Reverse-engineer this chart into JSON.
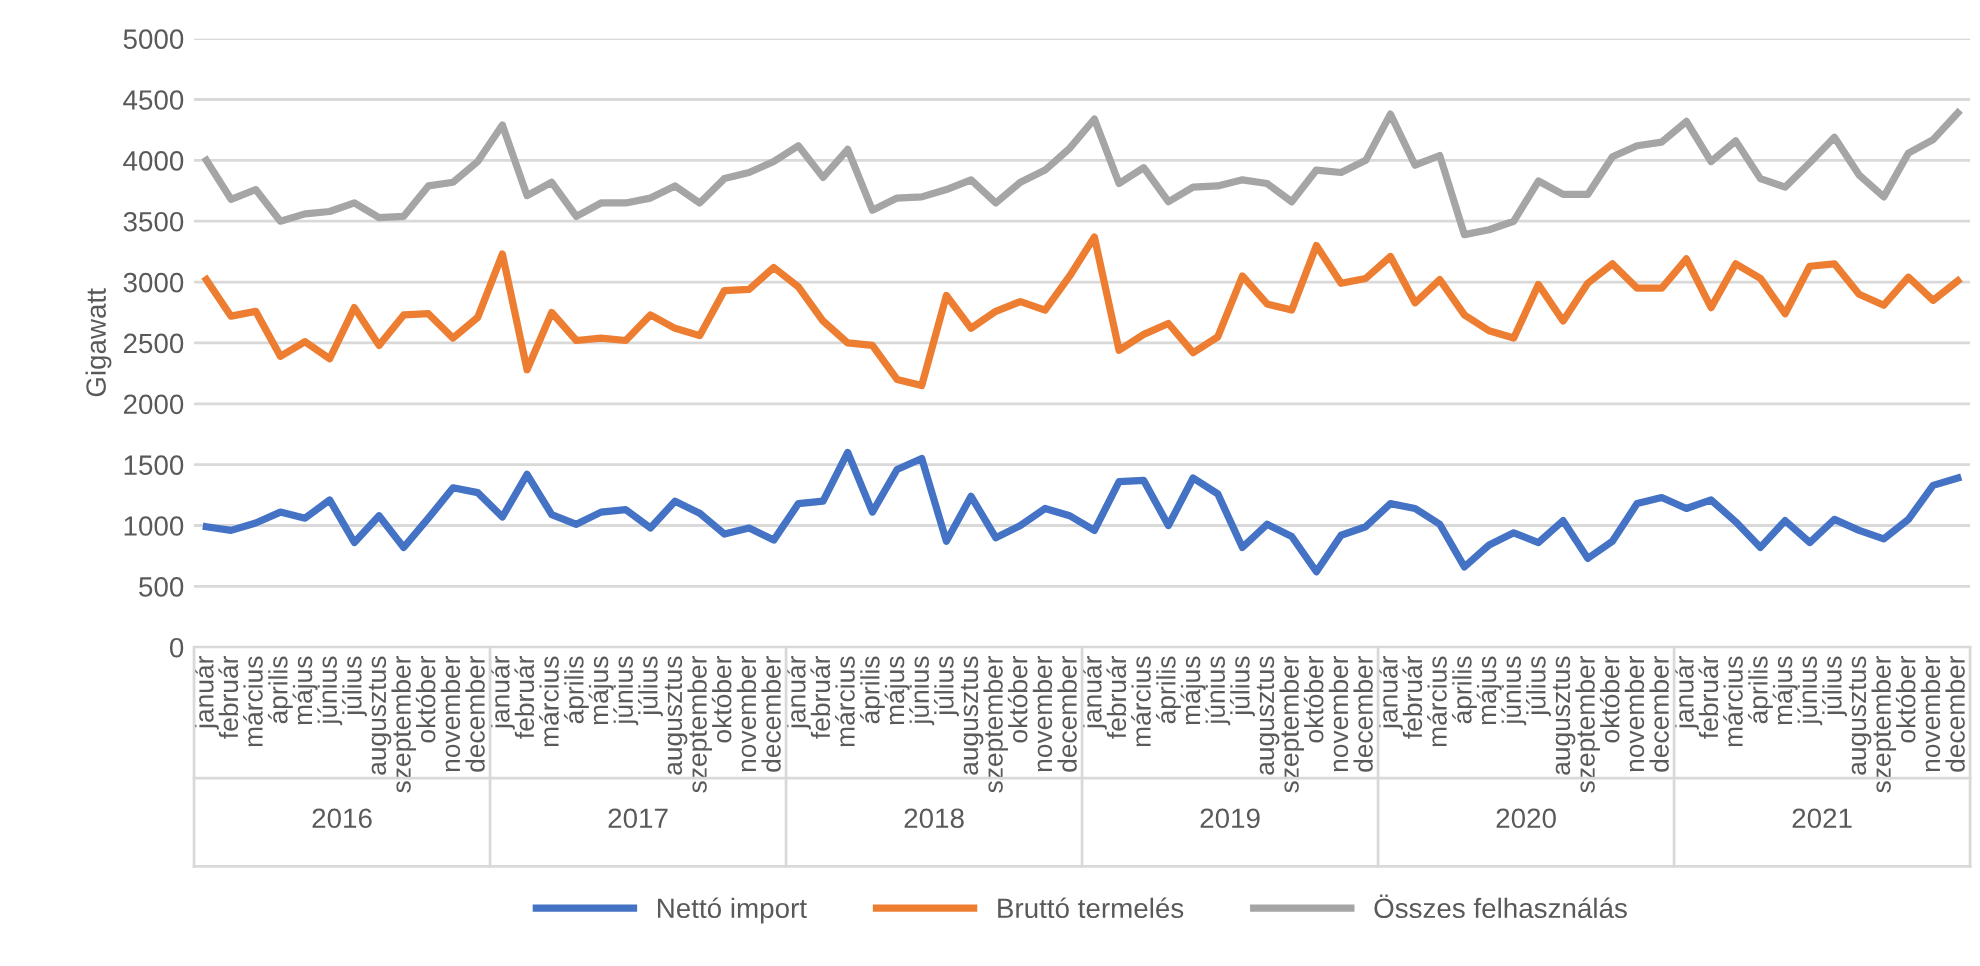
{
  "chart_data": {
    "type": "line",
    "ylabel": "Gigawatt",
    "categories": [
      "január",
      "február",
      "március",
      "április",
      "május",
      "június",
      "július",
      "augusztus",
      "szeptember",
      "október",
      "november",
      "december",
      "január",
      "február",
      "március",
      "április",
      "május",
      "június",
      "július",
      "augusztus",
      "szeptember",
      "október",
      "november",
      "december",
      "január",
      "február",
      "március",
      "április",
      "május",
      "június",
      "július",
      "augusztus",
      "szeptember",
      "október",
      "november",
      "december",
      "január",
      "február",
      "március",
      "április",
      "május",
      "június",
      "július",
      "augusztus",
      "szeptember",
      "október",
      "november",
      "december",
      "január",
      "február",
      "március",
      "április",
      "május",
      "június",
      "július",
      "augusztus",
      "szeptember",
      "október",
      "november",
      "december",
      "január",
      "február",
      "március",
      "április",
      "május",
      "június",
      "július",
      "augusztus",
      "szeptember",
      "október",
      "november",
      "december"
    ],
    "annotations": [
      "2016",
      "2017",
      "2018",
      "2019",
      "2020",
      "2021"
    ],
    "series": [
      {
        "name": "Nettó import",
        "color": "#4472c4",
        "values": [
          990,
          960,
          1020,
          1110,
          1060,
          1210,
          860,
          1080,
          820,
          1060,
          1310,
          1270,
          1070,
          1420,
          1090,
          1010,
          1110,
          1130,
          980,
          1200,
          1100,
          930,
          980,
          880,
          1180,
          1200,
          1600,
          1110,
          1460,
          1550,
          870,
          1240,
          900,
          1000,
          1140,
          1080,
          960,
          1360,
          1370,
          1000,
          1390,
          1260,
          820,
          1010,
          910,
          620,
          920,
          990,
          1180,
          1140,
          1010,
          660,
          840,
          940,
          860,
          1040,
          730,
          870,
          1180,
          1230,
          1140,
          1210,
          1030,
          820,
          1040,
          860,
          1050,
          960,
          890,
          1050,
          1330,
          1390
        ]
      },
      {
        "name": "Bruttó termelés",
        "color": "#ed7d31",
        "values": [
          3020,
          2720,
          2760,
          2390,
          2510,
          2370,
          2790,
          2480,
          2730,
          2740,
          2540,
          2710,
          3230,
          2280,
          2750,
          2520,
          2540,
          2520,
          2730,
          2620,
          2560,
          2930,
          2940,
          3120,
          2960,
          2680,
          2500,
          2480,
          2200,
          2150,
          2890,
          2620,
          2760,
          2840,
          2770,
          3050,
          3370,
          2440,
          2570,
          2660,
          2420,
          2550,
          3050,
          2820,
          2770,
          3300,
          2990,
          3030,
          3210,
          2830,
          3020,
          2730,
          2600,
          2540,
          2980,
          2680,
          2990,
          3150,
          2950,
          2950,
          3190,
          2790,
          3150,
          3030,
          2740,
          3130,
          3150,
          2900,
          2810,
          3040,
          2850,
          3010
        ]
      },
      {
        "name": "Összes felhasználás",
        "color": "#a5a5a5",
        "values": [
          4000,
          3680,
          3760,
          3500,
          3560,
          3580,
          3650,
          3530,
          3540,
          3790,
          3820,
          3990,
          4290,
          3710,
          3820,
          3540,
          3650,
          3650,
          3690,
          3790,
          3650,
          3850,
          3900,
          3990,
          4120,
          3860,
          4090,
          3590,
          3690,
          3700,
          3760,
          3840,
          3650,
          3820,
          3920,
          4100,
          4340,
          3810,
          3940,
          3660,
          3780,
          3790,
          3840,
          3810,
          3660,
          3920,
          3900,
          4000,
          4380,
          3960,
          4040,
          3390,
          3430,
          3500,
          3830,
          3720,
          3720,
          4030,
          4120,
          4150,
          4320,
          3990,
          4160,
          3850,
          3780,
          3980,
          4190,
          3880,
          3700,
          4060,
          4170,
          4390
        ]
      }
    ],
    "ylim": [
      0,
      5000
    ],
    "yticks": [
      0,
      500,
      1000,
      1500,
      2000,
      2500,
      3000,
      3500,
      4000,
      4500,
      5000
    ],
    "grid": "y",
    "legend": "bottom",
    "marker": "none",
    "line_style": "solid"
  }
}
